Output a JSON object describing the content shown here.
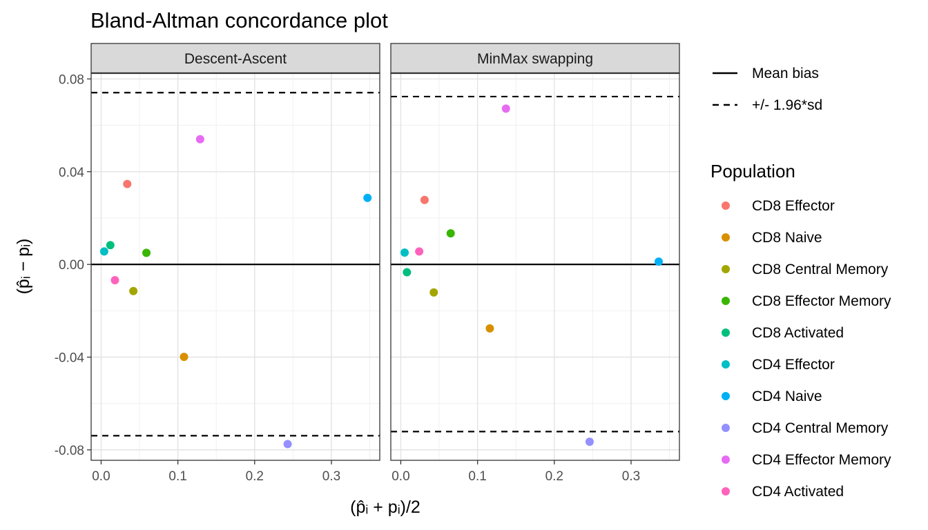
{
  "chart_data": {
    "type": "scatter",
    "title": "Bland-Altman concordance plot",
    "xlabel": "(p̂ᵢ + pᵢ)/2",
    "ylabel": "(p̂ᵢ − pᵢ)",
    "xlim": [
      -0.013,
      0.363
    ],
    "ylim": [
      -0.0845,
      0.0825
    ],
    "x_ticks": [
      0.0,
      0.1,
      0.2,
      0.3
    ],
    "x_tick_labels": [
      "0.0",
      "0.1",
      "0.2",
      "0.3"
    ],
    "y_ticks": [
      0.08,
      0.04,
      0.0,
      -0.04,
      -0.08
    ],
    "y_tick_labels": [
      "0.08",
      "0.04",
      "0.00",
      "-0.04",
      "-0.08"
    ],
    "grid": true,
    "legend_position": "right",
    "line_legend": [
      {
        "label": "Mean bias",
        "style": "solid"
      },
      {
        "label": "+/- 1.96*sd",
        "style": "dashed"
      }
    ],
    "legend_title": "Population",
    "populations": [
      {
        "name": "CD8 Effector",
        "color": "#F8766D"
      },
      {
        "name": "CD8 Naive",
        "color": "#D89000"
      },
      {
        "name": "CD8 Central Memory",
        "color": "#A3A500"
      },
      {
        "name": "CD8 Effector Memory",
        "color": "#39B600"
      },
      {
        "name": "CD8 Activated",
        "color": "#00BF7D"
      },
      {
        "name": "CD4 Effector",
        "color": "#00BFC4"
      },
      {
        "name": "CD4 Naive",
        "color": "#00B0F6"
      },
      {
        "name": "CD4 Central Memory",
        "color": "#9590FF"
      },
      {
        "name": "CD4 Effector Memory",
        "color": "#E76BF3"
      },
      {
        "name": "CD4 Activated",
        "color": "#FF62BC"
      }
    ],
    "panels": [
      {
        "strip": "Descent-Ascent",
        "mean_bias": 0.0,
        "limits": [
          0.0741,
          -0.0739
        ],
        "points": [
          {
            "population": "CD8 Effector",
            "x": 0.034,
            "y": 0.0347
          },
          {
            "population": "CD8 Naive",
            "x": 0.108,
            "y": -0.0399
          },
          {
            "population": "CD8 Central Memory",
            "x": 0.042,
            "y": -0.0115
          },
          {
            "population": "CD8 Effector Memory",
            "x": 0.059,
            "y": 0.005
          },
          {
            "population": "CD8 Activated",
            "x": 0.012,
            "y": 0.0083
          },
          {
            "population": "CD4 Effector",
            "x": 0.004,
            "y": 0.0056
          },
          {
            "population": "CD4 Naive",
            "x": 0.347,
            "y": 0.0287
          },
          {
            "population": "CD4 Central Memory",
            "x": 0.243,
            "y": -0.0775
          },
          {
            "population": "CD4 Effector Memory",
            "x": 0.129,
            "y": 0.054
          },
          {
            "population": "CD4 Activated",
            "x": 0.018,
            "y": -0.0068
          }
        ]
      },
      {
        "strip": "MinMax swapping",
        "mean_bias": 0.0,
        "limits": [
          0.0724,
          -0.0721
        ],
        "points": [
          {
            "population": "CD8 Effector",
            "x": 0.031,
            "y": 0.0278
          },
          {
            "population": "CD8 Naive",
            "x": 0.116,
            "y": -0.0276
          },
          {
            "population": "CD8 Central Memory",
            "x": 0.043,
            "y": -0.0121
          },
          {
            "population": "CD8 Effector Memory",
            "x": 0.065,
            "y": 0.0134
          },
          {
            "population": "CD8 Activated",
            "x": 0.008,
            "y": -0.0034
          },
          {
            "population": "CD4 Effector",
            "x": 0.005,
            "y": 0.0051
          },
          {
            "population": "CD4 Naive",
            "x": 0.336,
            "y": 0.0012
          },
          {
            "population": "CD4 Central Memory",
            "x": 0.246,
            "y": -0.0765
          },
          {
            "population": "CD4 Effector Memory",
            "x": 0.137,
            "y": 0.0672
          },
          {
            "population": "CD4 Activated",
            "x": 0.024,
            "y": 0.0056
          }
        ]
      }
    ]
  }
}
